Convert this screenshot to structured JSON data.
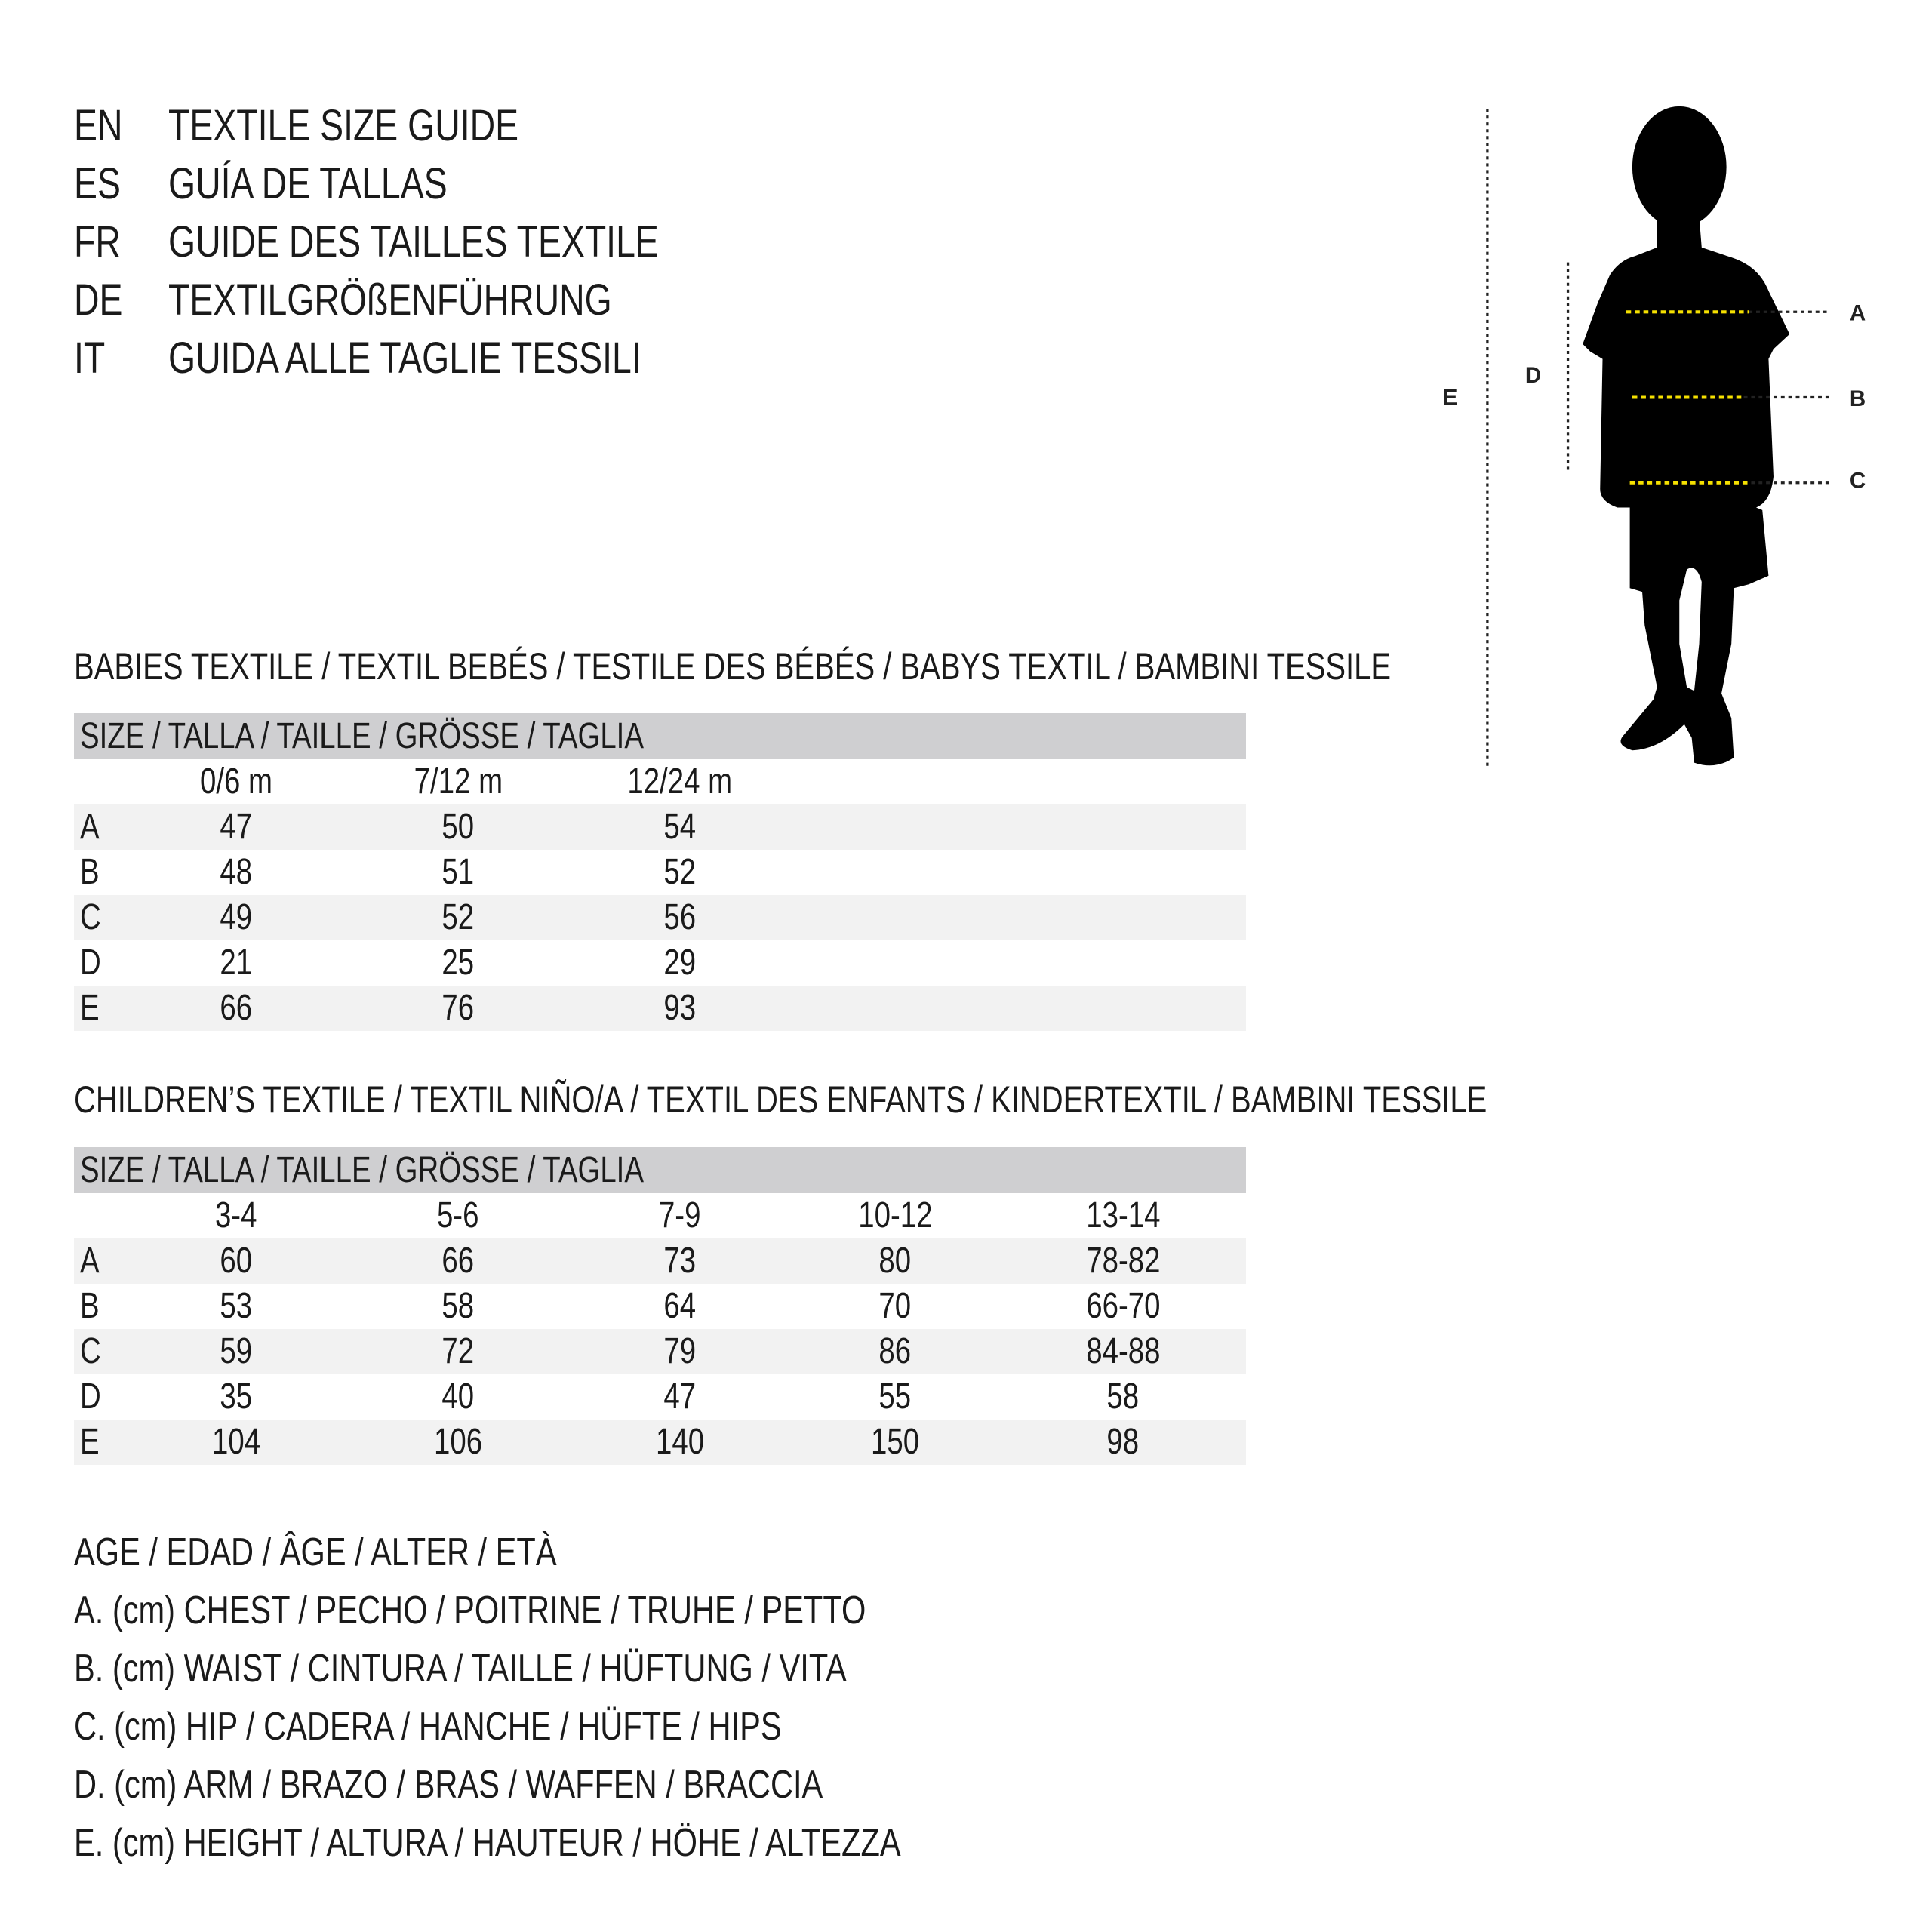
{
  "titles": [
    {
      "code": "EN",
      "text": "TEXTILE SIZE GUIDE"
    },
    {
      "code": "ES",
      "text": "GUÍA DE TALLAS"
    },
    {
      "code": "FR",
      "text": "GUIDE DES TAILLES TEXTILE"
    },
    {
      "code": "DE",
      "text": "TEXTILGRÖßENFÜHRUNG"
    },
    {
      "code": "IT",
      "text": "GUIDA ALLE TAGLIE TESSILI"
    }
  ],
  "figure": {
    "labels": {
      "a": "A",
      "b": "B",
      "c": "C",
      "d": "D",
      "e": "E"
    },
    "accent_color": "#f5e000"
  },
  "babies": {
    "heading": "BABIES TEXTILE / TEXTIL BEBÉS / TESTILE DES BÉBÉS / BABYS TEXTIL / BAMBINI TESSILE",
    "size_header": "SIZE / TALLA / TAILLE / GRÖSSE / TAGLIA",
    "columns": [
      "0/6 m",
      "7/12 m",
      "12/24 m"
    ],
    "rows": [
      {
        "label": "A",
        "values": [
          "47",
          "50",
          "54"
        ]
      },
      {
        "label": "B",
        "values": [
          "48",
          "51",
          "52"
        ]
      },
      {
        "label": "C",
        "values": [
          "49",
          "52",
          "56"
        ]
      },
      {
        "label": "D",
        "values": [
          "21",
          "25",
          "29"
        ]
      },
      {
        "label": "E",
        "values": [
          "66",
          "76",
          "93"
        ]
      }
    ]
  },
  "children": {
    "heading": "CHILDREN’S TEXTILE / TEXTIL NIÑO/A / TEXTIL DES ENFANTS / KINDERTEXTIL / BAMBINI TESSILE",
    "size_header": "SIZE / TALLA / TAILLE / GRÖSSE / TAGLIA",
    "columns": [
      "3-4",
      "5-6",
      "7-9",
      "10-12",
      "13-14"
    ],
    "rows": [
      {
        "label": "A",
        "values": [
          "60",
          "66",
          "73",
          "80",
          "78-82"
        ]
      },
      {
        "label": "B",
        "values": [
          "53",
          "58",
          "64",
          "70",
          "66-70"
        ]
      },
      {
        "label": "C",
        "values": [
          "59",
          "72",
          "79",
          "86",
          "84-88"
        ]
      },
      {
        "label": "D",
        "values": [
          "35",
          "40",
          "47",
          "55",
          "58"
        ]
      },
      {
        "label": "E",
        "values": [
          "104",
          "106",
          "140",
          "150",
          "98"
        ]
      }
    ]
  },
  "legend": [
    "AGE / EDAD / ÂGE / ALTER / ETÀ",
    "A. (cm) CHEST / PECHO / POITRINE / TRUHE / PETTO",
    "B. (cm) WAIST / CINTURA / TAILLE / HÜFTUNG / VITA",
    "C. (cm) HIP / CADERA / HANCHE / HÜFTE / HIPS",
    "D. (cm) ARM / BRAZO / BRAS / WAFFEN / BRACCIA",
    "E. (cm) HEIGHT / ALTURA / HAUTEUR / HÖHE / ALTEZZA"
  ]
}
